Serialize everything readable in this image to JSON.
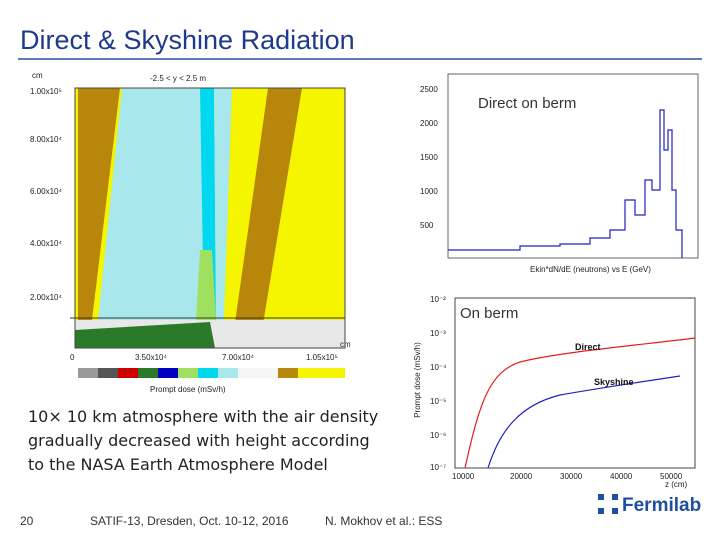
{
  "header": {
    "title": "Direct & Skyshine Radiation"
  },
  "map_plot": {
    "top_label": "-2.5 < y < 2.5 m",
    "y_unit": "cm",
    "x_unit": "cm",
    "y_ticks": [
      "1.00x10⁵",
      "8.00x10⁴",
      "6.00x10⁴",
      "4.00x10⁴",
      "2.00x10⁴"
    ],
    "x_ticks": [
      "0",
      "3.50x10⁴",
      "7.00x10⁴",
      "1.05x10⁵"
    ],
    "legend_title": "Prompt dose (mSv/h)"
  },
  "spectrum_plot": {
    "caption": "Direct on berm",
    "x_title": "Ekin*dN/dE (neutrons) vs E (GeV)",
    "y_ticks": [
      "2500",
      "2000",
      "1500",
      "1000",
      "500"
    ]
  },
  "dose_plot": {
    "caption": "On berm",
    "y_title": "Prompt dose (mSv/h)",
    "x_title": "z (cm)",
    "curve_labels": [
      "Direct",
      "Skyshine"
    ],
    "y_ticks": [
      "10⁻²",
      "10⁻³",
      "10⁻⁴",
      "10⁻⁵",
      "10⁻⁶",
      "10⁻⁷"
    ],
    "x_ticks": [
      "10000",
      "20000",
      "30000",
      "40000",
      "50000"
    ]
  },
  "body": {
    "lines": [
      "10× 10 km atmosphere with the air density",
      "gradually decreased with height according",
      "to the NASA Earth Atmosphere Model"
    ]
  },
  "footer": {
    "page": "20",
    "event": "SATIF-13, Dresden, Oct. 10-12, 2016",
    "author": "N. Mokhov et al.: ESS",
    "logo": "Fermilab"
  }
}
